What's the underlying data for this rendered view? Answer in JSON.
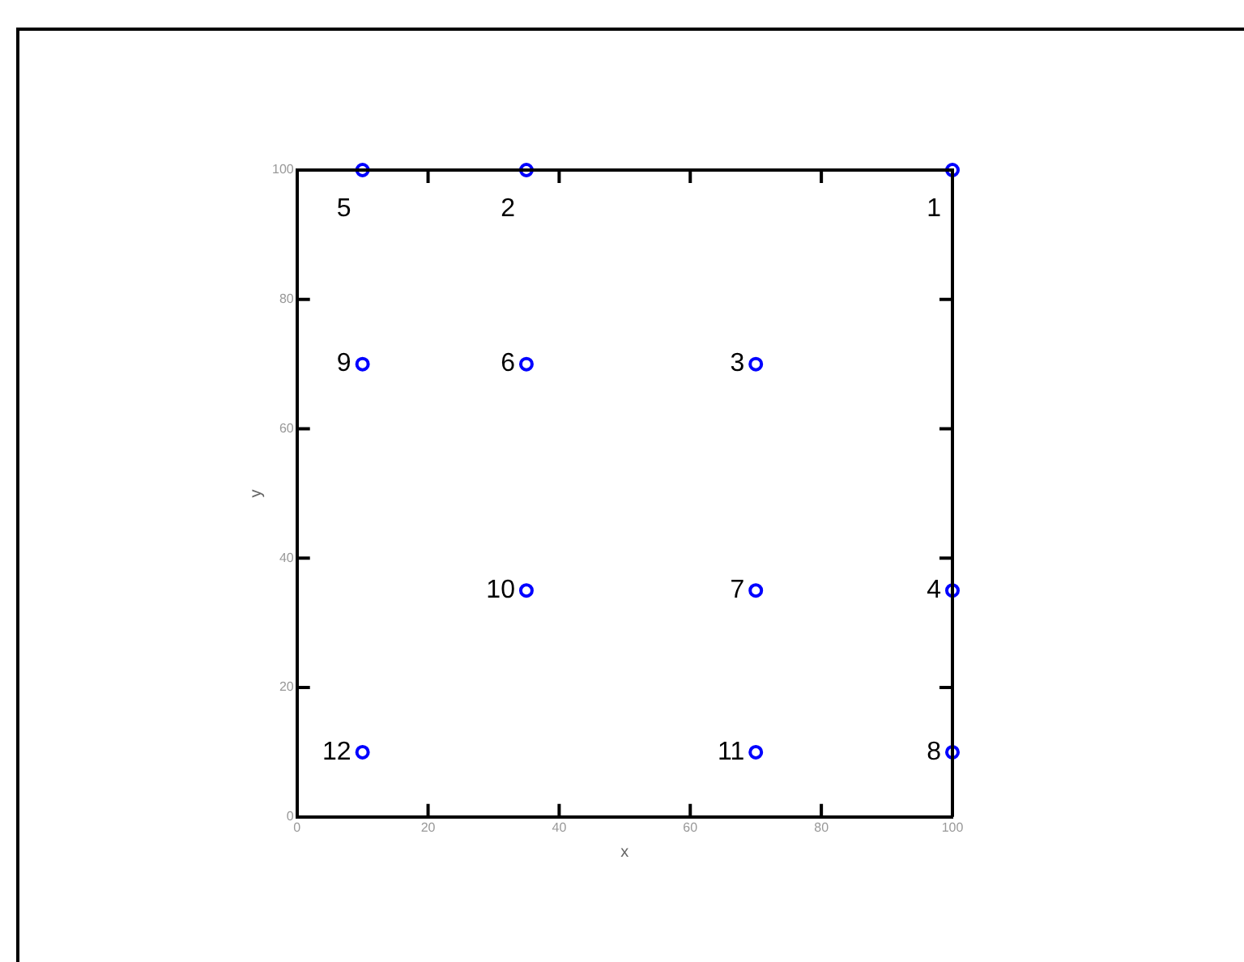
{
  "chart_data": {
    "type": "scatter",
    "xlabel": "x",
    "ylabel": "y",
    "x": [
      100,
      35,
      70,
      100,
      10,
      35,
      70,
      100,
      10,
      35,
      70,
      10
    ],
    "series": [
      {
        "color": "#0000ff",
        "values": [
          100,
          100,
          70,
          35,
          100,
          70,
          35,
          10,
          70,
          35,
          10,
          10
        ]
      }
    ],
    "xlim": [
      0,
      100
    ],
    "ylim": [
      0,
      100
    ],
    "xticks": [
      0,
      20,
      40,
      60,
      80,
      100
    ],
    "yticks": [
      0,
      20,
      40,
      60,
      80,
      100
    ],
    "grid": false,
    "legend": false,
    "marker": "circle",
    "annotations": [
      {
        "text": "1",
        "x": 100,
        "y": 100
      },
      {
        "text": "2",
        "x": 35,
        "y": 100
      },
      {
        "text": "3",
        "x": 70,
        "y": 70
      },
      {
        "text": "4",
        "x": 100,
        "y": 35
      },
      {
        "text": "5",
        "x": 10,
        "y": 100
      },
      {
        "text": "6",
        "x": 35,
        "y": 70
      },
      {
        "text": "7",
        "x": 70,
        "y": 35
      },
      {
        "text": "8",
        "x": 100,
        "y": 10
      },
      {
        "text": "9",
        "x": 10,
        "y": 70
      },
      {
        "text": "10",
        "x": 35,
        "y": 35
      },
      {
        "text": "11",
        "x": 70,
        "y": 10
      },
      {
        "text": "12",
        "x": 10,
        "y": 10
      }
    ]
  }
}
